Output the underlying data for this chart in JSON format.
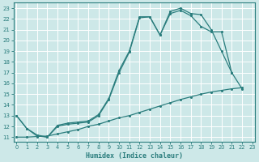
{
  "xlabel": "Humidex (Indice chaleur)",
  "x_ticks": [
    0,
    1,
    2,
    3,
    4,
    5,
    6,
    7,
    8,
    9,
    10,
    11,
    12,
    13,
    14,
    15,
    16,
    17,
    18,
    19,
    20,
    21,
    22,
    23
  ],
  "y_ticks": [
    11,
    12,
    13,
    14,
    15,
    16,
    17,
    18,
    19,
    20,
    21,
    22,
    23
  ],
  "xlim": [
    -0.3,
    23.3
  ],
  "ylim": [
    10.6,
    23.5
  ],
  "line_color": "#2a7d7d",
  "bg_color": "#cde8e8",
  "grid_color": "#b0d4d4",
  "line1_x": [
    0,
    1,
    2,
    3,
    4,
    5,
    6,
    7,
    8,
    9,
    10,
    11,
    12,
    13,
    14,
    15,
    16,
    17,
    18,
    19,
    20,
    21
  ],
  "line1_y": [
    13.0,
    11.8,
    11.1,
    11.0,
    12.1,
    12.3,
    12.4,
    12.5,
    13.1,
    14.6,
    17.2,
    19.0,
    22.2,
    22.2,
    20.5,
    22.7,
    23.0,
    22.5,
    22.4,
    21.0,
    19.0,
    17.0
  ],
  "line2_x": [
    0,
    1,
    2,
    3,
    4,
    5,
    6,
    7,
    8,
    9,
    10,
    11,
    12,
    13,
    14,
    15,
    16,
    17,
    18,
    19,
    20,
    21,
    22
  ],
  "line2_y": [
    13.0,
    11.8,
    11.2,
    11.0,
    12.0,
    12.2,
    12.3,
    12.4,
    13.0,
    14.5,
    17.0,
    18.9,
    22.1,
    22.2,
    20.5,
    22.5,
    22.8,
    22.3,
    21.3,
    20.8,
    20.8,
    17.0,
    15.5
  ],
  "line3_x": [
    0,
    1,
    2,
    3,
    4,
    5,
    6,
    7,
    8,
    9,
    10,
    11,
    12,
    13,
    14,
    15,
    16,
    17,
    18,
    19,
    20,
    21,
    22
  ],
  "line3_y": [
    11.0,
    11.0,
    11.05,
    11.1,
    11.3,
    11.5,
    11.7,
    12.0,
    12.2,
    12.5,
    12.8,
    13.0,
    13.3,
    13.6,
    13.9,
    14.2,
    14.5,
    14.75,
    15.0,
    15.2,
    15.35,
    15.5,
    15.6
  ]
}
